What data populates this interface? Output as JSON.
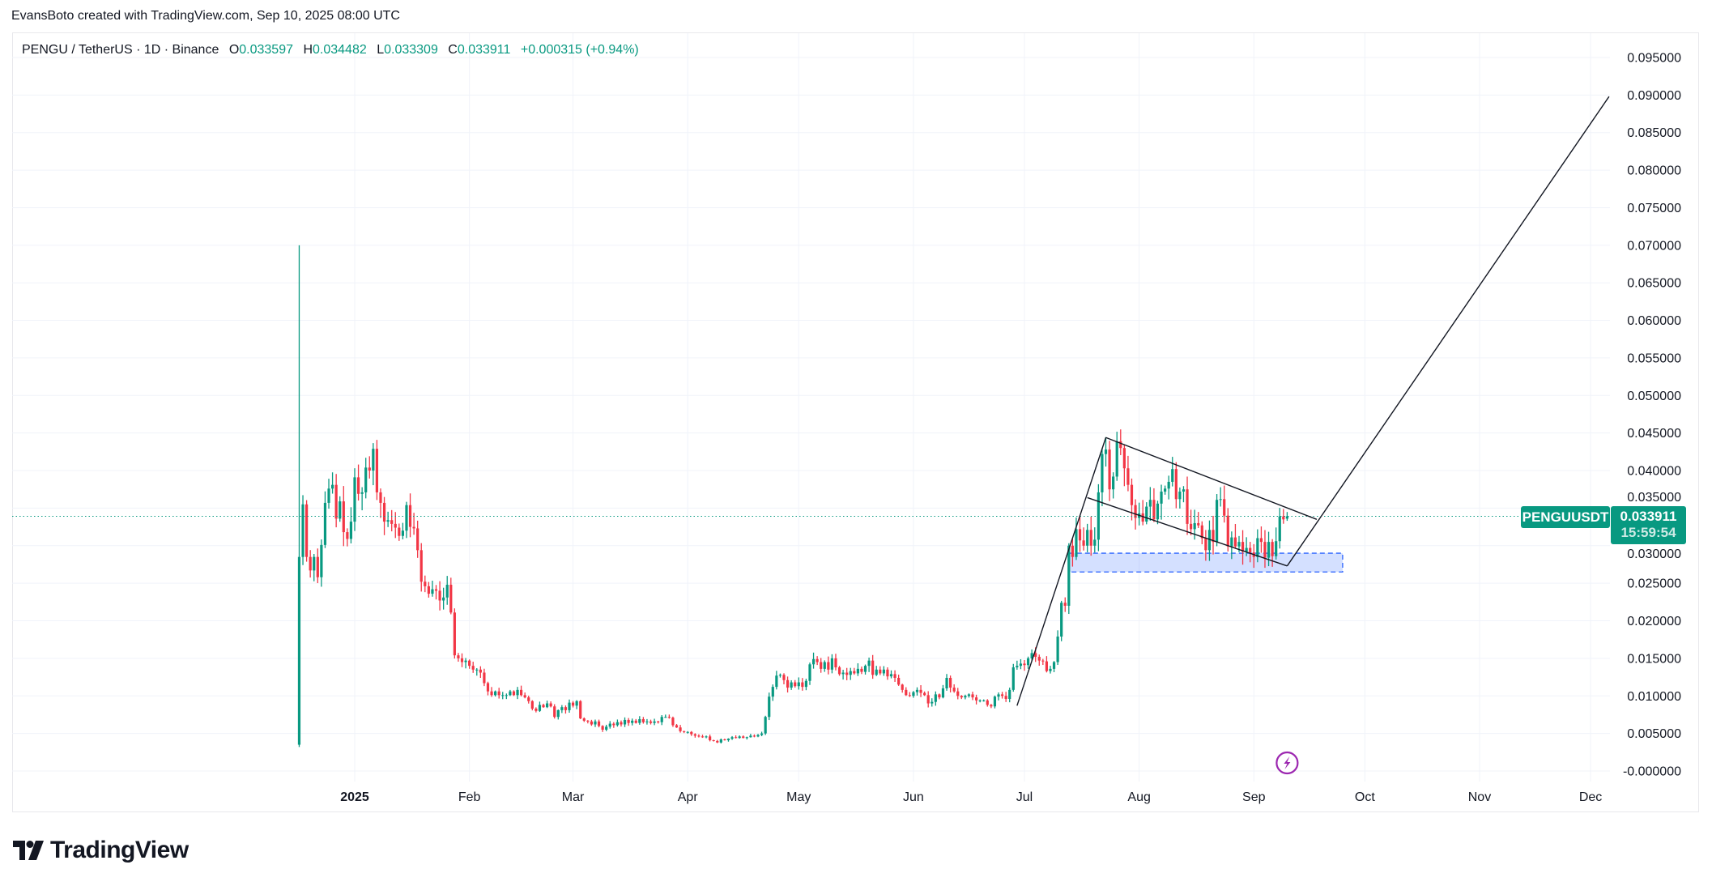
{
  "header": {
    "credit": "EvansBoto created with TradingView.com, Sep 10, 2025 08:00 UTC"
  },
  "legend": {
    "symbol": "PENGU / TetherUS · 1D · Binance",
    "o_label": "O",
    "o": "0.033597",
    "h_label": "H",
    "h": "0.034482",
    "l_label": "L",
    "l": "0.033309",
    "c_label": "C",
    "c": "0.033911",
    "change": "+0.000315 (+0.94%)"
  },
  "price_label": {
    "ticker": "PENGUUSDT",
    "price": "0.033911",
    "countdown": "15:59:54"
  },
  "footer": {
    "brand": "TradingView"
  },
  "colors": {
    "up": "#089981",
    "down": "#F23645",
    "grid": "#f0f3fa",
    "zone": "#2962ff",
    "event": "#9c27b0"
  },
  "chart_data": {
    "type": "candlestick",
    "title": "",
    "grid": true,
    "ylim": [
      0,
      0.095
    ],
    "y_ticks": [
      "0.095000",
      "0.090000",
      "0.085000",
      "0.080000",
      "0.075000",
      "0.070000",
      "0.065000",
      "0.060000",
      "0.055000",
      "0.050000",
      "0.045000",
      "0.040000",
      "0.035000",
      "0.030000",
      "0.025000",
      "0.020000",
      "0.015000",
      "0.010000",
      "0.005000",
      "-0.000000"
    ],
    "x_ticks": [
      {
        "label": "2025",
        "date": "2025-01-01"
      },
      {
        "label": "Feb",
        "date": "2025-02-01"
      },
      {
        "label": "Mar",
        "date": "2025-03-01"
      },
      {
        "label": "Apr",
        "date": "2025-04-01"
      },
      {
        "label": "May",
        "date": "2025-05-01"
      },
      {
        "label": "Jun",
        "date": "2025-06-01"
      },
      {
        "label": "Jul",
        "date": "2025-07-01"
      },
      {
        "label": "Aug",
        "date": "2025-08-01"
      },
      {
        "label": "Sep",
        "date": "2025-09-01"
      },
      {
        "label": "Oct",
        "date": "2025-10-01"
      },
      {
        "label": "Nov",
        "date": "2025-11-01"
      },
      {
        "label": "Dec",
        "date": "2025-12-01"
      }
    ],
    "xlim": [
      "2024-11-27",
      "2025-12-07"
    ],
    "start_date": "2024-12-17",
    "first_candle": {
      "o": 0.0035,
      "h": 0.07,
      "l": 0.0032,
      "c": 0.0285
    },
    "last_candle": {
      "date": "2025-09-10",
      "o": 0.033597,
      "h": 0.034482,
      "l": 0.033309,
      "c": 0.033911
    },
    "close": [
      0.0285,
      0.0355,
      0.0285,
      0.0267,
      0.0285,
      0.0258,
      0.0301,
      0.0357,
      0.0376,
      0.0381,
      0.0336,
      0.0359,
      0.0318,
      0.0309,
      0.0332,
      0.0391,
      0.0369,
      0.0371,
      0.0404,
      0.04,
      0.0429,
      0.0371,
      0.0357,
      0.0332,
      0.0334,
      0.0329,
      0.0324,
      0.0313,
      0.032,
      0.0354,
      0.0325,
      0.0323,
      0.0294,
      0.0252,
      0.0246,
      0.0236,
      0.0242,
      0.024,
      0.0227,
      0.0231,
      0.0248,
      0.0211,
      0.0154,
      0.015,
      0.0145,
      0.0147,
      0.014,
      0.0135,
      0.0135,
      0.0131,
      0.0117,
      0.0106,
      0.0101,
      0.0106,
      0.0101,
      0.0101,
      0.0101,
      0.0106,
      0.0101,
      0.0108,
      0.0101,
      0.0098,
      0.0093,
      0.0083,
      0.008,
      0.0088,
      0.0085,
      0.009,
      0.0086,
      0.0072,
      0.0081,
      0.0085,
      0.0081,
      0.0091,
      0.0087,
      0.0093,
      0.007,
      0.0067,
      0.0066,
      0.0062,
      0.0066,
      0.006,
      0.0055,
      0.0059,
      0.0063,
      0.0061,
      0.0065,
      0.0062,
      0.0068,
      0.0064,
      0.0067,
      0.0064,
      0.0069,
      0.0065,
      0.0066,
      0.0064,
      0.0066,
      0.0065,
      0.0072,
      0.0072,
      0.0071,
      0.0061,
      0.0058,
      0.0053,
      0.0052,
      0.0052,
      0.0049,
      0.0047,
      0.0046,
      0.0045,
      0.0046,
      0.0041,
      0.004,
      0.0038,
      0.0042,
      0.0041,
      0.0043,
      0.0045,
      0.0044,
      0.0046,
      0.0044,
      0.0045,
      0.0047,
      0.0046,
      0.0048,
      0.005,
      0.0072,
      0.0099,
      0.0112,
      0.0127,
      0.0128,
      0.0121,
      0.0111,
      0.0118,
      0.0113,
      0.0118,
      0.0112,
      0.012,
      0.0142,
      0.0149,
      0.0145,
      0.0136,
      0.0145,
      0.0135,
      0.015,
      0.0138,
      0.0129,
      0.0131,
      0.0128,
      0.0133,
      0.013,
      0.0136,
      0.0132,
      0.014,
      0.0147,
      0.0128,
      0.0135,
      0.013,
      0.0135,
      0.0126,
      0.0129,
      0.0124,
      0.0115,
      0.0108,
      0.0101,
      0.01,
      0.0105,
      0.0108,
      0.0104,
      0.0101,
      0.009,
      0.0092,
      0.0102,
      0.0098,
      0.011,
      0.0124,
      0.0111,
      0.0106,
      0.01,
      0.0098,
      0.01,
      0.0102,
      0.0098,
      0.0094,
      0.0094,
      0.0094,
      0.0088,
      0.0086,
      0.0099,
      0.0102,
      0.01,
      0.0096,
      0.0108,
      0.0138,
      0.014,
      0.0143,
      0.0141,
      0.015,
      0.0157,
      0.0152,
      0.0147,
      0.0146,
      0.0133,
      0.0136,
      0.0145,
      0.0179,
      0.0224,
      0.022,
      0.03,
      0.0285,
      0.0322,
      0.0307,
      0.03,
      0.0321,
      0.03,
      0.0308,
      0.0371,
      0.0422,
      0.0428,
      0.0375,
      0.0392,
      0.0439,
      0.043,
      0.0403,
      0.0381,
      0.0354,
      0.0337,
      0.0343,
      0.0332,
      0.0352,
      0.0361,
      0.0335,
      0.0356,
      0.0372,
      0.0376,
      0.0385,
      0.0402,
      0.0362,
      0.0372,
      0.0375,
      0.0329,
      0.0322,
      0.033,
      0.0327,
      0.031,
      0.0294,
      0.0321,
      0.0305,
      0.0361,
      0.0362,
      0.034,
      0.0299,
      0.0311,
      0.0299,
      0.0305,
      0.0292,
      0.0297,
      0.0291,
      0.0285,
      0.031,
      0.0305,
      0.0284,
      0.0305,
      0.0286,
      0.0306,
      0.0339,
      0.0335
    ],
    "last_price": 0.033911,
    "drawings": {
      "impulse_line": [
        [
          "2025-06-29",
          0.0087
        ],
        [
          "2025-07-23",
          0.0444
        ]
      ],
      "channel_upper": [
        [
          "2025-07-23",
          0.0444
        ],
        [
          "2025-09-18",
          0.0335
        ]
      ],
      "channel_lower": [
        [
          "2025-07-18",
          0.0364
        ],
        [
          "2025-09-10",
          0.0273
        ]
      ],
      "projection": [
        [
          "2025-09-10",
          0.0273
        ],
        [
          "2025-12-06",
          0.0898
        ]
      ],
      "support_zone": {
        "from": "2025-07-13",
        "to": "2025-09-25",
        "top": 0.029,
        "bottom": 0.0265
      }
    },
    "event_marker": {
      "date": "2025-09-10",
      "icon": "lightning-icon"
    }
  }
}
